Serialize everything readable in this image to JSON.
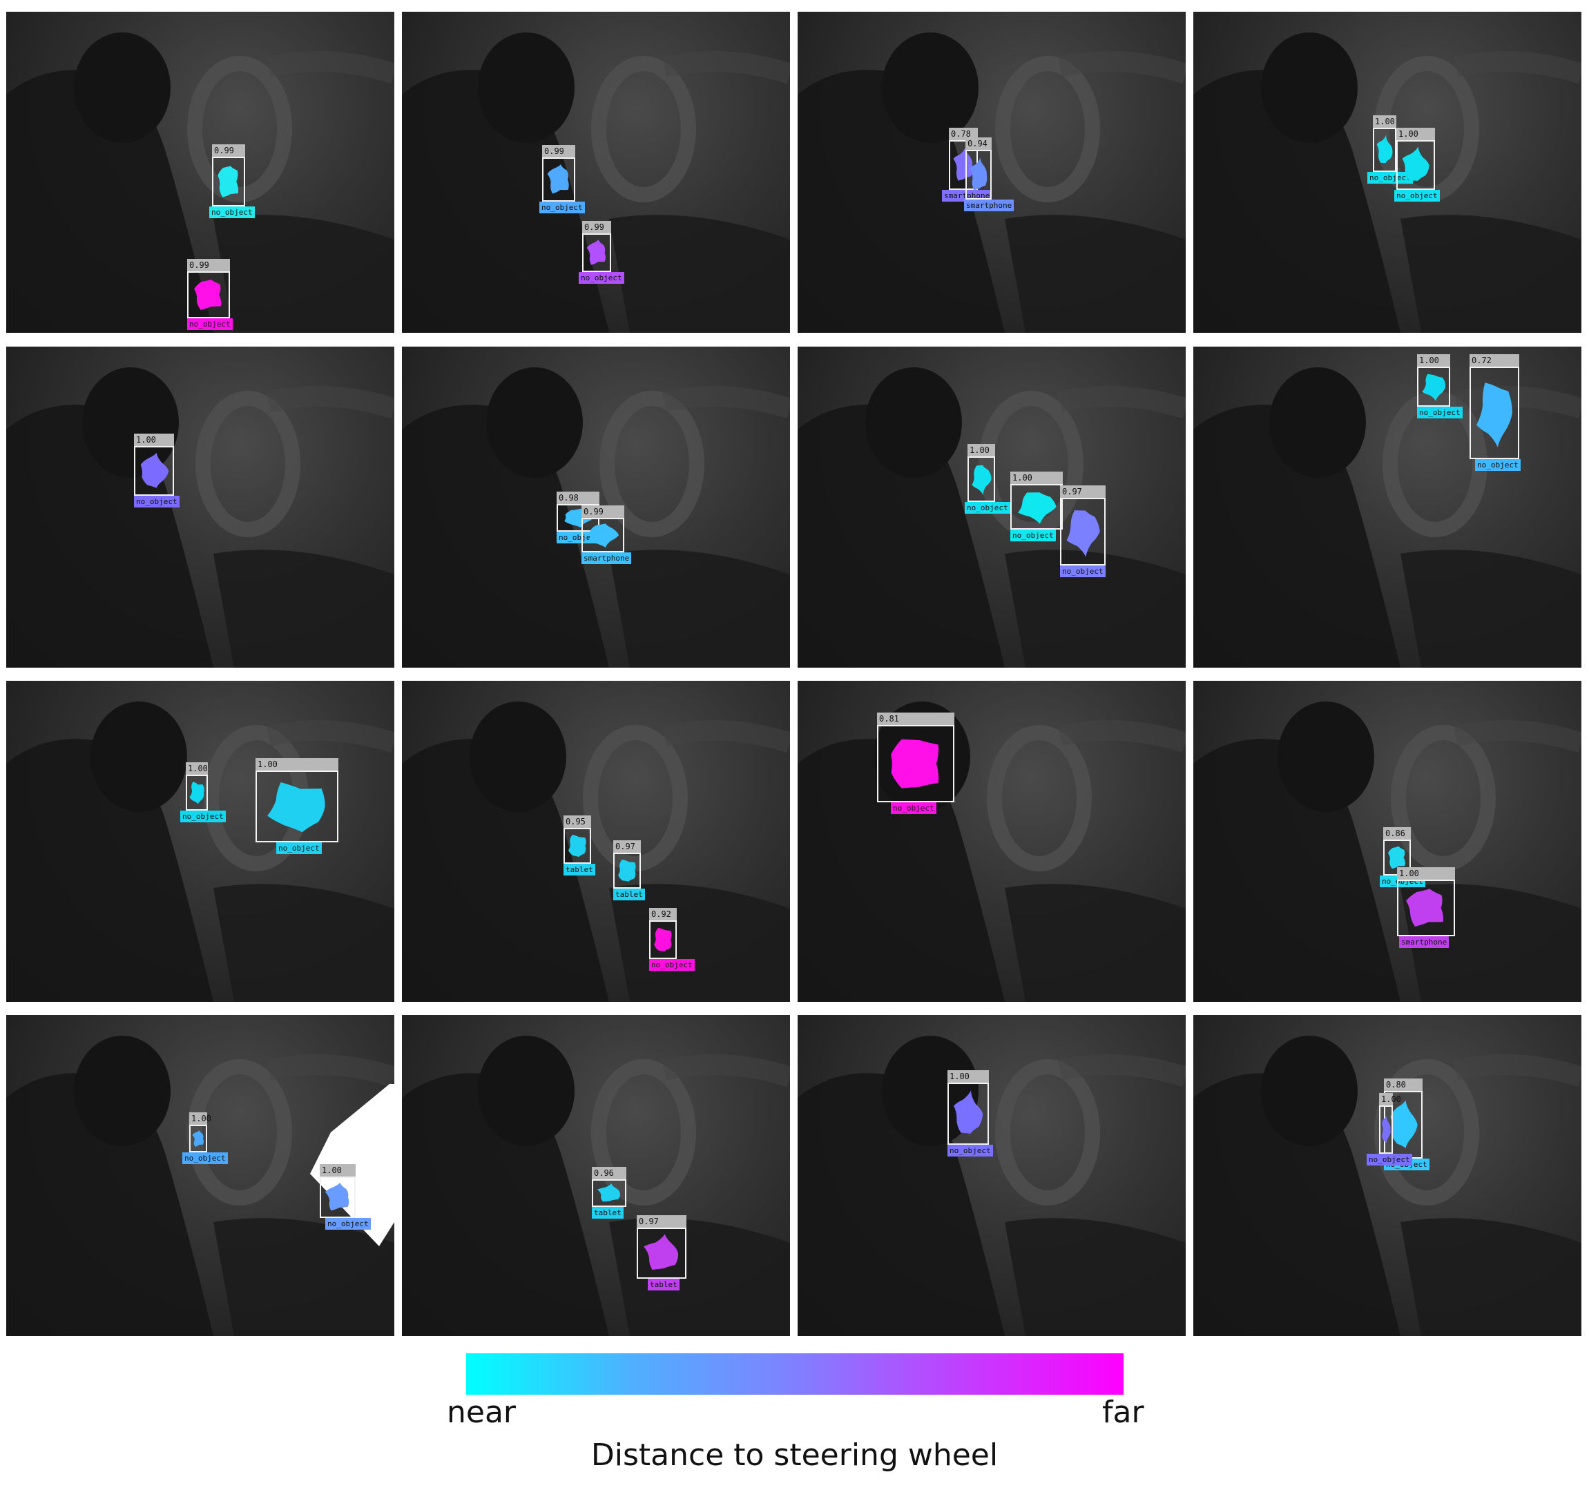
{
  "colors": {
    "near": "#00ffff",
    "mid": "#8080ff",
    "far": "#ff00ff"
  },
  "legend": {
    "near_label": "near",
    "far_label": "far",
    "title": "Distance to steering wheel"
  },
  "panels": [
    {
      "detections": [
        {
          "score": "0.99",
          "label": "no_object",
          "color": "#22e8f0"
        },
        {
          "score": "0.99",
          "label": "no_object",
          "color": "#ff10e8"
        }
      ]
    },
    {
      "detections": [
        {
          "score": "0.99",
          "label": "no_object",
          "color": "#4faaff"
        },
        {
          "score": "0.99",
          "label": "no_object",
          "color": "#b050ff"
        }
      ]
    },
    {
      "detections": [
        {
          "score": "0.78",
          "label": "smartphone",
          "color": "#8070ff"
        },
        {
          "score": "0.94",
          "label": "smartphone",
          "color": "#6a90ff"
        }
      ]
    },
    {
      "detections": [
        {
          "score": "1.00",
          "label": "no_object",
          "color": "#10e0f0"
        },
        {
          "score": "1.00",
          "label": "no_object",
          "color": "#10e0f0"
        }
      ]
    },
    {
      "detections": [
        {
          "score": "1.00",
          "label": "no_object",
          "color": "#7b6cff"
        }
      ]
    },
    {
      "detections": [
        {
          "score": "0.98",
          "label": "no_object",
          "color": "#3cc0ff"
        },
        {
          "score": "0.99",
          "label": "smartphone",
          "color": "#3cc0ff"
        }
      ]
    },
    {
      "detections": [
        {
          "score": "1.00",
          "label": "no_object",
          "color": "#10e0f0"
        },
        {
          "score": "1.00",
          "label": "no_object",
          "color": "#10e8f0"
        },
        {
          "score": "0.97",
          "label": "no_object",
          "color": "#7a80ff"
        }
      ]
    },
    {
      "detections": [
        {
          "score": "1.00",
          "label": "no_object",
          "color": "#10d8f0"
        },
        {
          "score": "0.72",
          "label": "no_object",
          "color": "#40b8ff"
        }
      ]
    },
    {
      "detections": [
        {
          "score": "1.00",
          "label": "no_object",
          "color": "#10d8f0"
        },
        {
          "score": "1.00",
          "label": "no_object",
          "color": "#20d0f0"
        }
      ]
    },
    {
      "detections": [
        {
          "score": "0.95",
          "label": "tablet",
          "color": "#20d0f0"
        },
        {
          "score": "0.97",
          "label": "tablet",
          "color": "#20d0f0"
        },
        {
          "score": "0.92",
          "label": "no_object",
          "color": "#ff10e0"
        }
      ]
    },
    {
      "detections": [
        {
          "score": "0.81",
          "label": "no_object",
          "color": "#ff10e8"
        }
      ]
    },
    {
      "detections": [
        {
          "score": "0.86",
          "label": "no_object",
          "color": "#20d8f0"
        },
        {
          "score": "1.00",
          "label": "smartphone",
          "color": "#c040f0"
        }
      ]
    },
    {
      "detections": [
        {
          "score": "1.00",
          "label": "no_object",
          "color": "#4aa8ff"
        },
        {
          "score": "1.00",
          "label": "no_object",
          "color": "#6a9cff"
        }
      ]
    },
    {
      "detections": [
        {
          "score": "0.96",
          "label": "tablet",
          "color": "#20d0f0"
        },
        {
          "score": "0.97",
          "label": "tablet",
          "color": "#c040f0"
        }
      ]
    },
    {
      "detections": [
        {
          "score": "1.00",
          "label": "no_object",
          "color": "#7a70ff"
        }
      ]
    },
    {
      "detections": [
        {
          "score": "0.80",
          "label": "no_object",
          "color": "#30c8ff"
        },
        {
          "score": "1.00",
          "label": "no_object",
          "color": "#7a70ff"
        }
      ]
    }
  ]
}
